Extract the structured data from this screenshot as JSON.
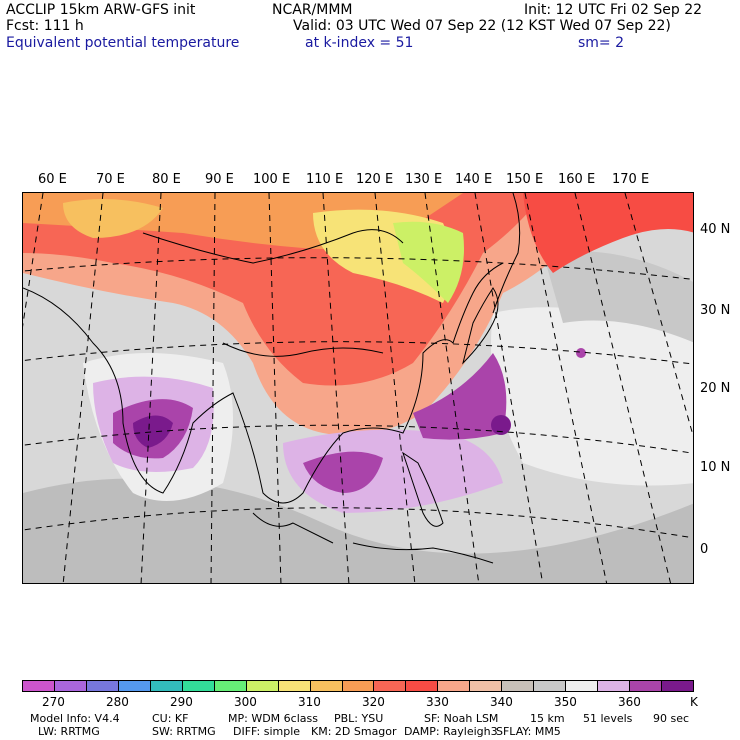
{
  "header": {
    "model_line": "ACCLIP 15km ARW-GFS init",
    "org": "NCAR/MMM",
    "init": "Init: 12 UTC Fri 02 Sep 22",
    "fcst": "Fcst:  111 h",
    "valid": "Valid: 03 UTC Wed 07 Sep 22 (12 KST Wed 07 Sep 22)",
    "field": "Equivalent potential temperature",
    "level": "at k-index =  51",
    "smooth": "sm= 2"
  },
  "map": {
    "lon_labels": [
      "60 E",
      "70 E",
      "80 E",
      "90 E",
      "100 E",
      "110 E",
      "120 E",
      "130 E",
      "140 E",
      "150 E",
      "160 E",
      "170 E"
    ],
    "lat_labels": [
      "40 N",
      "30 N",
      "20 N",
      "10 N",
      "0"
    ]
  },
  "colorbar": {
    "colors": [
      "#cc55cc",
      "#aa66dd",
      "#7777dd",
      "#5599ee",
      "#33bbbb",
      "#33dd99",
      "#66ee77",
      "#ccf066",
      "#f7e377",
      "#f7c05f",
      "#f79d55",
      "#f76655",
      "#f74c44",
      "#f7a68a",
      "#f0c0a6",
      "#c8c0b8",
      "#c8c8c8",
      "#eeeeee",
      "#ddb3e6",
      "#aa44aa",
      "#7a1a8c"
    ],
    "labels": [
      "270",
      "280",
      "290",
      "300",
      "310",
      "320",
      "330",
      "340",
      "350",
      "360"
    ],
    "unit": "K"
  },
  "footer": {
    "line1": [
      "Model Info: V4.4",
      "CU: KF",
      "MP: WDM 6class",
      "PBL: YSU",
      "SF: Noah LSM",
      "15 km",
      "51 levels",
      "90 sec"
    ],
    "line2": [
      "LW: RRTMG",
      "SW: RRTMG",
      "DIFF: simple",
      "KM: 2D Smagor",
      "DAMP: Rayleigh3",
      "SFLAY: MM5"
    ]
  }
}
